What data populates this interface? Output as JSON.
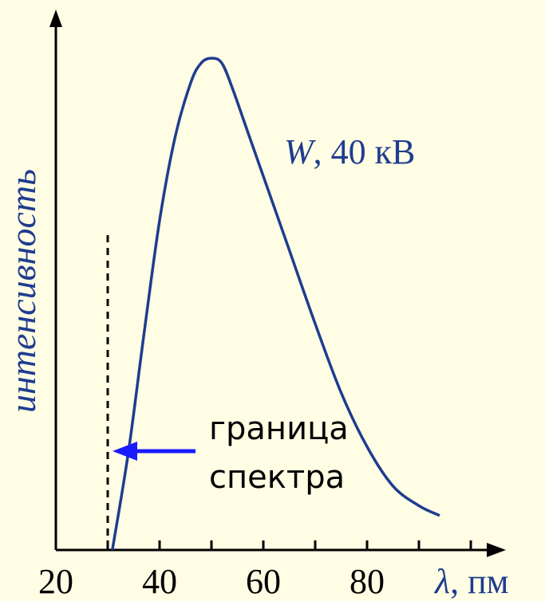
{
  "chart_data": {
    "type": "line",
    "xlabel_symbol": "λ",
    "xlabel_unit": ", пм",
    "ylabel": "интенсивность",
    "xlim": [
      20,
      100
    ],
    "x_ticks": [
      20,
      40,
      60,
      80
    ],
    "series": [
      {
        "name_symbol": "W",
        "name_rest": ", 40 кВ",
        "color": "#1f3c8f",
        "x": [
          30.9,
          34,
          37,
          40,
          43,
          46,
          48,
          50,
          52,
          54,
          57,
          60,
          65,
          70,
          75,
          80,
          85,
          90,
          94
        ],
        "y": [
          0.0,
          0.2,
          0.44,
          0.67,
          0.84,
          0.95,
          0.99,
          1.0,
          0.99,
          0.94,
          0.85,
          0.76,
          0.61,
          0.46,
          0.32,
          0.21,
          0.13,
          0.09,
          0.07
        ]
      }
    ],
    "annotations": {
      "cutoff_x": 30,
      "cutoff_line_style": "dashed",
      "arrow_color": "#1a1aff",
      "label_line1": "граница",
      "label_line2": "спектра"
    },
    "grid": false
  }
}
